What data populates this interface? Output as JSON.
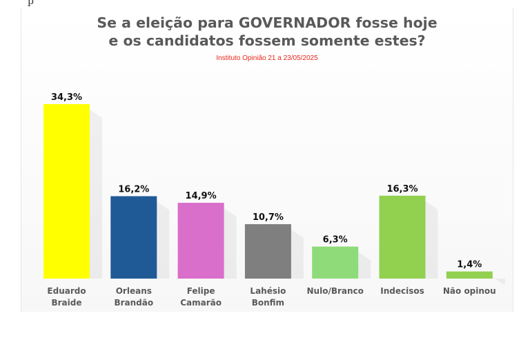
{
  "page_top_fragment": "p",
  "chart_data": {
    "type": "bar",
    "title": "Se a eleição para GOVERNADOR fosse hoje e os candidatos fossem somente estes?",
    "title_lines": [
      "Se a eleição para GOVERNADOR fosse hoje",
      "e os candidatos fossem somente estes?"
    ],
    "subtitle": "Instituto Opinião 21 a 23/05/2025",
    "categories": [
      [
        "Eduardo",
        "Braide"
      ],
      [
        "Orleans",
        "Brandão"
      ],
      [
        "Felipe",
        "Camarão"
      ],
      [
        "Lahésio",
        "Bonfim"
      ],
      [
        "Nulo/Branco"
      ],
      [
        "Indecisos"
      ],
      [
        "Não opinou"
      ]
    ],
    "values": [
      34.3,
      16.2,
      14.9,
      10.7,
      6.3,
      16.3,
      1.4
    ],
    "value_labels": [
      "34,3%",
      "16,2%",
      "14,9%",
      "10,7%",
      "6,3%",
      "16,3%",
      "1,4%"
    ],
    "colors": [
      "#ffff00",
      "#1f5a96",
      "#d96ecb",
      "#7f7f7f",
      "#8fdb7a",
      "#92d050",
      "#92d050"
    ],
    "ylim": [
      0,
      34.3
    ],
    "xlabel": "",
    "ylabel": "",
    "grid": false,
    "legend": "none"
  }
}
